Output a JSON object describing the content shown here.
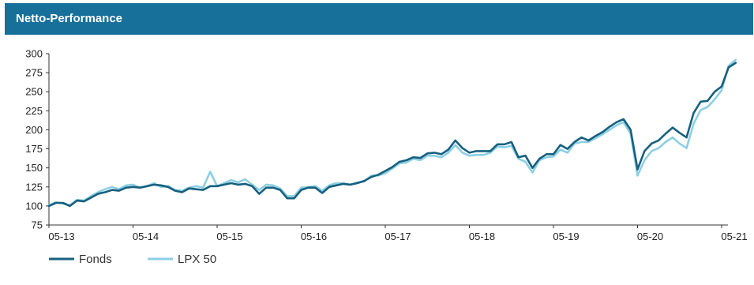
{
  "header": {
    "title": "Netto-Performance"
  },
  "colors": {
    "header_bg": "#16709a",
    "fonds": "#17607f",
    "lpx": "#8ccfe3",
    "axis": "#333333"
  },
  "chart_data": {
    "type": "line",
    "title": "Netto-Performance",
    "xlabel": "",
    "ylabel": "",
    "ylim": [
      75,
      300
    ],
    "yticks": [
      "300",
      "275",
      "250",
      "225",
      "200",
      "175",
      "150",
      "125",
      "100",
      "75"
    ],
    "xticks": [
      "05-13",
      "05-14",
      "05-15",
      "05-16",
      "05-17",
      "05-18",
      "05-19",
      "05-20",
      "05-21"
    ],
    "grid": false,
    "legend_position": "bottom-left",
    "series": [
      {
        "name": "Fonds",
        "color": "#17607f",
        "points": [
          [
            0,
            100
          ],
          [
            0.083,
            104
          ],
          [
            0.167,
            104
          ],
          [
            0.25,
            100
          ],
          [
            0.333,
            107
          ],
          [
            0.417,
            106
          ],
          [
            0.5,
            111
          ],
          [
            0.583,
            116
          ],
          [
            0.667,
            118
          ],
          [
            0.75,
            121
          ],
          [
            0.833,
            120
          ],
          [
            0.917,
            124
          ],
          [
            1.0,
            125
          ],
          [
            1.083,
            124
          ],
          [
            1.167,
            126
          ],
          [
            1.25,
            128
          ],
          [
            1.333,
            127
          ],
          [
            1.417,
            125
          ],
          [
            1.5,
            120
          ],
          [
            1.583,
            118
          ],
          [
            1.667,
            123
          ],
          [
            1.75,
            122
          ],
          [
            1.833,
            121
          ],
          [
            1.917,
            126
          ],
          [
            2.0,
            126
          ],
          [
            2.083,
            128
          ],
          [
            2.167,
            130
          ],
          [
            2.25,
            128
          ],
          [
            2.333,
            129
          ],
          [
            2.417,
            126
          ],
          [
            2.5,
            116
          ],
          [
            2.583,
            124
          ],
          [
            2.667,
            124
          ],
          [
            2.75,
            121
          ],
          [
            2.833,
            110
          ],
          [
            2.917,
            110
          ],
          [
            3.0,
            121
          ],
          [
            3.083,
            124
          ],
          [
            3.167,
            124
          ],
          [
            3.25,
            117
          ],
          [
            3.333,
            125
          ],
          [
            3.417,
            127
          ],
          [
            3.5,
            129
          ],
          [
            3.583,
            128
          ],
          [
            3.667,
            130
          ],
          [
            3.75,
            133
          ],
          [
            3.833,
            138
          ],
          [
            3.917,
            141
          ],
          [
            4.0,
            146
          ],
          [
            4.083,
            151
          ],
          [
            4.167,
            158
          ],
          [
            4.25,
            160
          ],
          [
            4.333,
            164
          ],
          [
            4.417,
            163
          ],
          [
            4.5,
            169
          ],
          [
            4.583,
            170
          ],
          [
            4.667,
            168
          ],
          [
            4.75,
            174
          ],
          [
            4.833,
            186
          ],
          [
            4.917,
            176
          ],
          [
            5.0,
            170
          ],
          [
            5.083,
            172
          ],
          [
            5.167,
            172
          ],
          [
            5.25,
            172
          ],
          [
            5.333,
            181
          ],
          [
            5.417,
            181
          ],
          [
            5.5,
            184
          ],
          [
            5.583,
            164
          ],
          [
            5.667,
            166
          ],
          [
            5.75,
            150
          ],
          [
            5.833,
            162
          ],
          [
            5.917,
            168
          ],
          [
            6.0,
            168
          ],
          [
            6.083,
            180
          ],
          [
            6.167,
            175
          ],
          [
            6.25,
            184
          ],
          [
            6.333,
            190
          ],
          [
            6.417,
            186
          ],
          [
            6.5,
            192
          ],
          [
            6.583,
            197
          ],
          [
            6.667,
            204
          ],
          [
            6.75,
            210
          ],
          [
            6.833,
            214
          ],
          [
            6.917,
            200
          ],
          [
            7.0,
            148
          ],
          [
            7.083,
            172
          ],
          [
            7.167,
            182
          ],
          [
            7.25,
            186
          ],
          [
            7.333,
            195
          ],
          [
            7.417,
            203
          ],
          [
            7.5,
            196
          ],
          [
            7.583,
            190
          ],
          [
            7.667,
            222
          ],
          [
            7.75,
            237
          ],
          [
            7.833,
            238
          ],
          [
            7.917,
            250
          ],
          [
            8.0,
            257
          ],
          [
            8.083,
            282
          ],
          [
            8.167,
            288
          ]
        ]
      },
      {
        "name": "LPX 50",
        "color": "#8ccfe3",
        "points": [
          [
            0,
            101
          ],
          [
            0.083,
            105
          ],
          [
            0.167,
            103
          ],
          [
            0.25,
            101
          ],
          [
            0.333,
            108
          ],
          [
            0.417,
            107
          ],
          [
            0.5,
            113
          ],
          [
            0.583,
            118
          ],
          [
            0.667,
            122
          ],
          [
            0.75,
            125
          ],
          [
            0.833,
            122
          ],
          [
            0.917,
            127
          ],
          [
            1.0,
            128
          ],
          [
            1.083,
            124
          ],
          [
            1.167,
            126
          ],
          [
            1.25,
            130
          ],
          [
            1.333,
            125
          ],
          [
            1.417,
            126
          ],
          [
            1.5,
            121
          ],
          [
            1.583,
            120
          ],
          [
            1.667,
            124
          ],
          [
            1.75,
            126
          ],
          [
            1.833,
            124
          ],
          [
            1.917,
            145
          ],
          [
            2.0,
            126
          ],
          [
            2.083,
            130
          ],
          [
            2.167,
            134
          ],
          [
            2.25,
            131
          ],
          [
            2.333,
            135
          ],
          [
            2.417,
            128
          ],
          [
            2.5,
            121
          ],
          [
            2.583,
            128
          ],
          [
            2.667,
            127
          ],
          [
            2.75,
            123
          ],
          [
            2.833,
            113
          ],
          [
            2.917,
            113
          ],
          [
            3.0,
            124
          ],
          [
            3.083,
            125
          ],
          [
            3.167,
            126
          ],
          [
            3.25,
            120
          ],
          [
            3.333,
            127
          ],
          [
            3.417,
            130
          ],
          [
            3.5,
            130
          ],
          [
            3.583,
            128
          ],
          [
            3.667,
            131
          ],
          [
            3.75,
            132
          ],
          [
            3.833,
            140
          ],
          [
            3.917,
            140
          ],
          [
            4.0,
            143
          ],
          [
            4.083,
            149
          ],
          [
            4.167,
            156
          ],
          [
            4.25,
            157
          ],
          [
            4.333,
            162
          ],
          [
            4.417,
            160
          ],
          [
            4.5,
            166
          ],
          [
            4.583,
            166
          ],
          [
            4.667,
            164
          ],
          [
            4.75,
            170
          ],
          [
            4.833,
            180
          ],
          [
            4.917,
            170
          ],
          [
            5.0,
            166
          ],
          [
            5.083,
            167
          ],
          [
            5.167,
            167
          ],
          [
            5.25,
            170
          ],
          [
            5.333,
            178
          ],
          [
            5.417,
            177
          ],
          [
            5.5,
            179
          ],
          [
            5.583,
            162
          ],
          [
            5.667,
            158
          ],
          [
            5.75,
            144
          ],
          [
            5.833,
            160
          ],
          [
            5.917,
            164
          ],
          [
            6.0,
            165
          ],
          [
            6.083,
            174
          ],
          [
            6.167,
            170
          ],
          [
            6.25,
            182
          ],
          [
            6.333,
            184
          ],
          [
            6.417,
            184
          ],
          [
            6.5,
            189
          ],
          [
            6.583,
            194
          ],
          [
            6.667,
            200
          ],
          [
            6.75,
            206
          ],
          [
            6.833,
            210
          ],
          [
            6.917,
            195
          ],
          [
            7.0,
            140
          ],
          [
            7.083,
            160
          ],
          [
            7.167,
            172
          ],
          [
            7.25,
            176
          ],
          [
            7.333,
            184
          ],
          [
            7.417,
            190
          ],
          [
            7.5,
            182
          ],
          [
            7.583,
            176
          ],
          [
            7.667,
            208
          ],
          [
            7.75,
            226
          ],
          [
            7.833,
            230
          ],
          [
            7.917,
            240
          ],
          [
            8.0,
            252
          ],
          [
            8.083,
            284
          ],
          [
            8.167,
            292
          ]
        ]
      }
    ]
  }
}
